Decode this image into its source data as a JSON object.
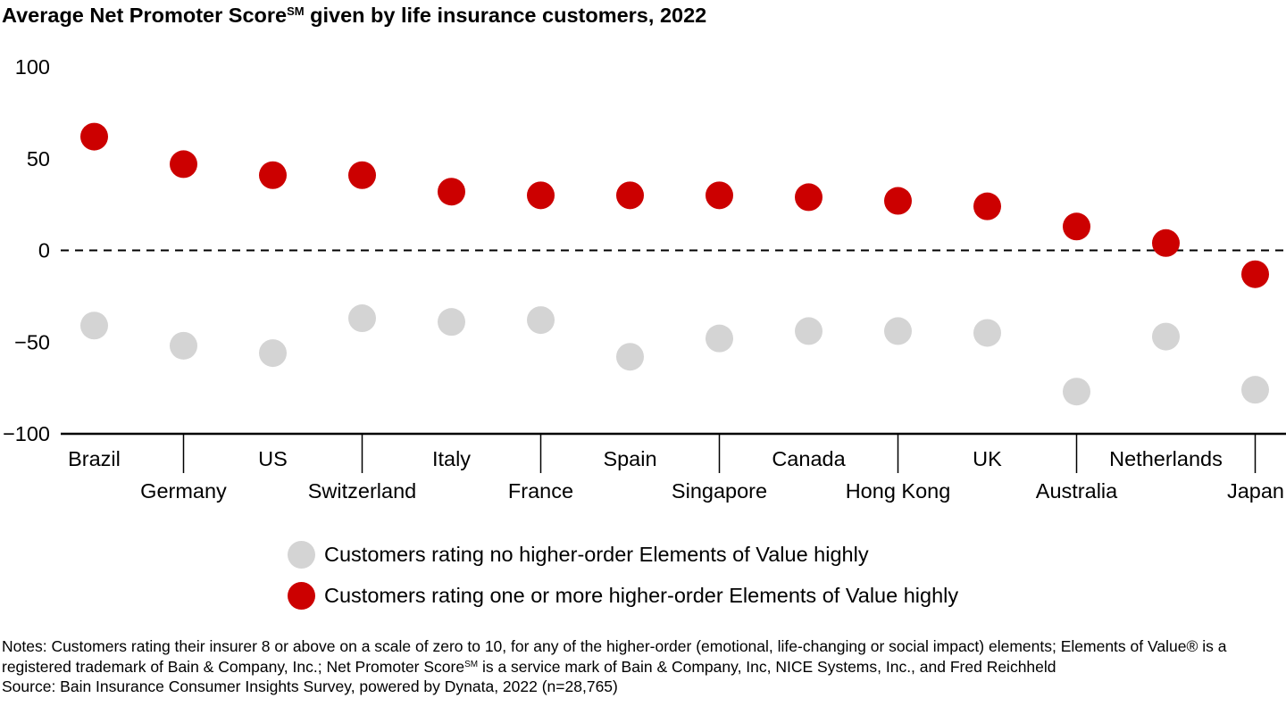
{
  "chart_data": {
    "type": "scatter",
    "title": "Average Net Promoter Score",
    "title_superscript": "SM",
    "title_suffix": " given by life insurance customers, 2022",
    "categories": [
      "Brazil",
      "Germany",
      "US",
      "Switzerland",
      "Italy",
      "France",
      "Spain",
      "Singapore",
      "Canada",
      "Hong Kong",
      "UK",
      "Australia",
      "Netherlands",
      "Japan"
    ],
    "ylim": [
      -100,
      100
    ],
    "yticks": [
      100,
      50,
      0,
      -50,
      -100
    ],
    "ytick_labels": [
      "100",
      "50",
      "0",
      "−50",
      "−100"
    ],
    "reference_line": {
      "y": 0,
      "style": "dashed"
    },
    "grid": false,
    "legend_position": "bottom-center",
    "series": [
      {
        "name": "Customers rating no higher-order Elements of Value highly",
        "color": "#d4d4d4",
        "values": [
          -41,
          -52,
          -56,
          -37,
          -39,
          -38,
          -58,
          -48,
          -44,
          -44,
          -45,
          -77,
          -47,
          -76
        ]
      },
      {
        "name": "Customers rating one or more higher-order Elements of Value highly",
        "color": "#cc0000",
        "values": [
          62,
          47,
          41,
          41,
          32,
          30,
          30,
          30,
          29,
          27,
          24,
          13,
          4,
          -13
        ]
      }
    ]
  },
  "notes": {
    "line1_a": "Notes: Customers rating their insurer 8 or above on a scale of zero to 10, for any of the higher-order (emotional, life-changing or social impact) elements; Elements of Value® is a registered trademark of Bain & Company, Inc.; Net Promoter Score",
    "line1_sup": "SM",
    "line1_b": " is a service mark of Bain & Company, Inc, NICE Systems, Inc., and Fred Reichheld",
    "source": "Source: Bain Insurance Consumer Insights Survey, powered by Dynata, 2022 (n=28,765)"
  }
}
